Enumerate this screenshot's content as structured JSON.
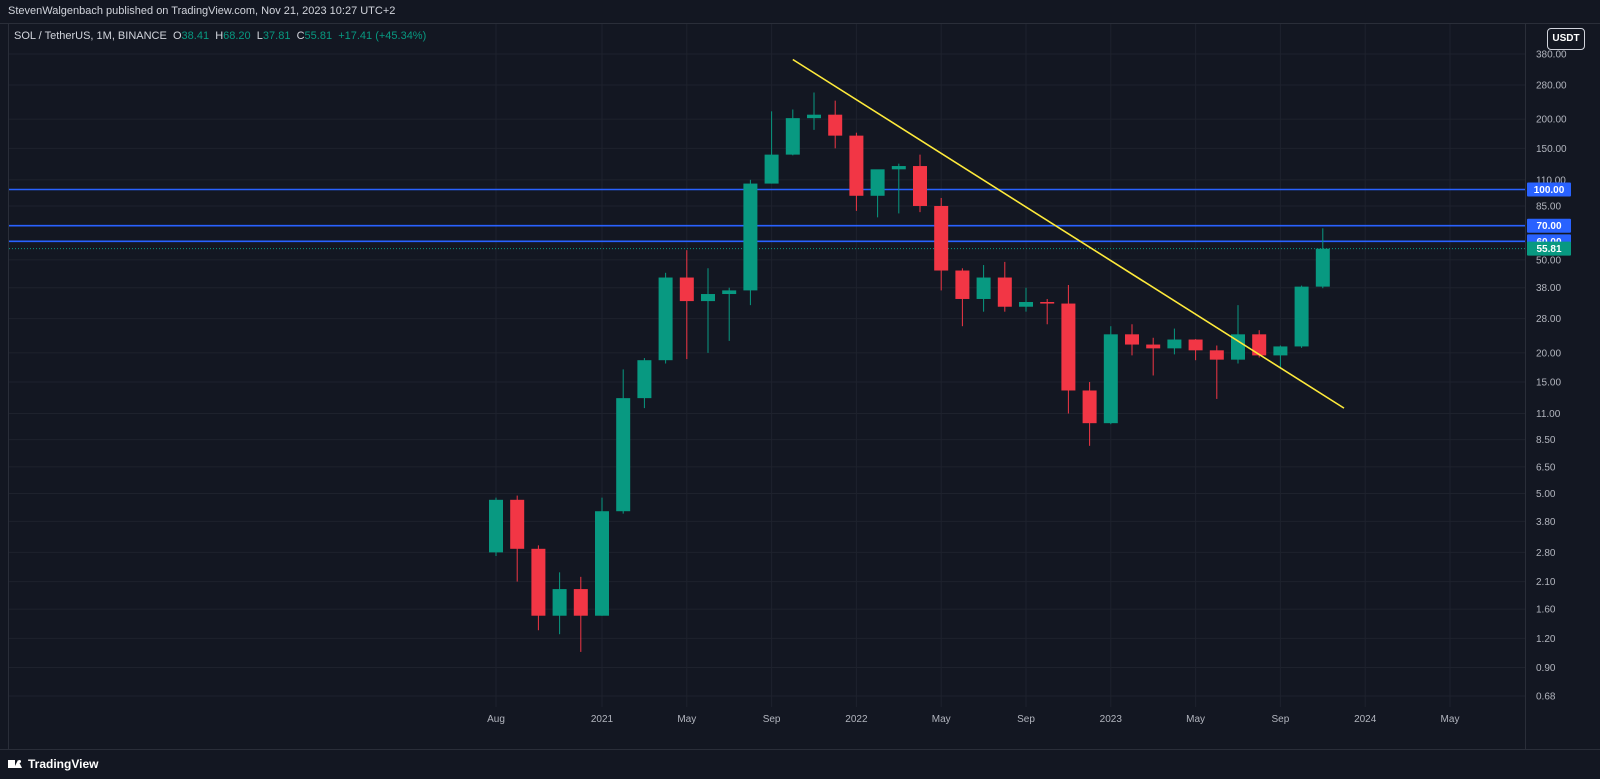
{
  "header": {
    "publisher": "StevenWalgenbach published on TradingView.com, Nov 21, 2023 10:27 UTC+2"
  },
  "legend": {
    "symbol": "SOL / TetherUS, 1M, BINANCE",
    "open_label": "O",
    "open": "38.41",
    "high_label": "H",
    "high": "68.20",
    "low_label": "L",
    "low": "37.81",
    "close_label": "C",
    "close": "55.81",
    "change": "+17.41 (+45.34%)"
  },
  "currency_button": "USDT",
  "footer": {
    "brand": "TradingView"
  },
  "colors": {
    "background": "#131722",
    "up": "#089981",
    "down": "#f23645",
    "trendline": "#ffeb3b",
    "level_line": "#2962ff",
    "grid": "#1e222d"
  },
  "chart_data": {
    "type": "candlestick",
    "scale": "log",
    "ylim": [
      0.6,
      450
    ],
    "y_ticks": [
      "0.68",
      "0.90",
      "1.20",
      "1.60",
      "2.10",
      "2.80",
      "3.80",
      "5.00",
      "6.50",
      "8.50",
      "11.00",
      "15.00",
      "20.00",
      "28.00",
      "38.00",
      "50.00",
      "85.00",
      "110.00",
      "150.00",
      "200.00",
      "280.00",
      "380.00"
    ],
    "x_ticks": [
      "Aug",
      "2021",
      "May",
      "Sep",
      "2022",
      "May",
      "Sep",
      "2023",
      "May",
      "Sep",
      "2024",
      "May"
    ],
    "candles": [
      {
        "date": "2020-08",
        "o": 2.8,
        "h": 4.8,
        "l": 2.7,
        "c": 4.7
      },
      {
        "date": "2020-09",
        "o": 4.7,
        "h": 4.9,
        "l": 2.1,
        "c": 2.9
      },
      {
        "date": "2020-10",
        "o": 2.9,
        "h": 3.0,
        "l": 1.3,
        "c": 1.5
      },
      {
        "date": "2020-11",
        "o": 1.5,
        "h": 2.3,
        "l": 1.25,
        "c": 1.95
      },
      {
        "date": "2020-12",
        "o": 1.95,
        "h": 2.2,
        "l": 1.05,
        "c": 1.5
      },
      {
        "date": "2021-01",
        "o": 1.5,
        "h": 4.8,
        "l": 1.5,
        "c": 4.2
      },
      {
        "date": "2021-02",
        "o": 4.2,
        "h": 17.0,
        "l": 4.1,
        "c": 12.8
      },
      {
        "date": "2021-03",
        "o": 12.8,
        "h": 19.0,
        "l": 11.6,
        "c": 18.6
      },
      {
        "date": "2021-04",
        "o": 18.6,
        "h": 44.0,
        "l": 18.0,
        "c": 42.0
      },
      {
        "date": "2021-05",
        "o": 42.0,
        "h": 55.0,
        "l": 18.8,
        "c": 33.3
      },
      {
        "date": "2021-06",
        "o": 33.3,
        "h": 46.0,
        "l": 20.0,
        "c": 35.7
      },
      {
        "date": "2021-07",
        "o": 35.7,
        "h": 38.0,
        "l": 22.5,
        "c": 37.0
      },
      {
        "date": "2021-08",
        "o": 37.0,
        "h": 110.0,
        "l": 32.0,
        "c": 106.0
      },
      {
        "date": "2021-09",
        "o": 106.0,
        "h": 216.0,
        "l": 106.0,
        "c": 141.0
      },
      {
        "date": "2021-10",
        "o": 141.0,
        "h": 220.0,
        "l": 140.0,
        "c": 202.0
      },
      {
        "date": "2021-11",
        "o": 202.0,
        "h": 260.0,
        "l": 180.0,
        "c": 209.0
      },
      {
        "date": "2021-12",
        "o": 209.0,
        "h": 240.0,
        "l": 150.0,
        "c": 170.0
      },
      {
        "date": "2022-01",
        "o": 170.0,
        "h": 175.0,
        "l": 81.0,
        "c": 94.0
      },
      {
        "date": "2022-02",
        "o": 94.0,
        "h": 120.0,
        "l": 76.0,
        "c": 122.0
      },
      {
        "date": "2022-03",
        "o": 122.0,
        "h": 129.0,
        "l": 79.0,
        "c": 126.0
      },
      {
        "date": "2022-04",
        "o": 126.0,
        "h": 141.0,
        "l": 80.0,
        "c": 85.0
      },
      {
        "date": "2022-05",
        "o": 85.0,
        "h": 92.0,
        "l": 37.0,
        "c": 45.0
      },
      {
        "date": "2022-06",
        "o": 45.0,
        "h": 46.0,
        "l": 26.0,
        "c": 34.0
      },
      {
        "date": "2022-07",
        "o": 34.0,
        "h": 47.5,
        "l": 30.0,
        "c": 42.0
      },
      {
        "date": "2022-08",
        "o": 42.0,
        "h": 49.0,
        "l": 30.0,
        "c": 31.5
      },
      {
        "date": "2022-09",
        "o": 31.5,
        "h": 38.0,
        "l": 30.0,
        "c": 33.0
      },
      {
        "date": "2022-10",
        "o": 33.0,
        "h": 34.0,
        "l": 26.5,
        "c": 32.5
      },
      {
        "date": "2022-11",
        "o": 32.5,
        "h": 39.0,
        "l": 11.0,
        "c": 13.8
      },
      {
        "date": "2022-12",
        "o": 13.8,
        "h": 15.0,
        "l": 8.0,
        "c": 10.0
      },
      {
        "date": "2023-01",
        "o": 10.0,
        "h": 26.0,
        "l": 9.9,
        "c": 24.0
      },
      {
        "date": "2023-02",
        "o": 24.0,
        "h": 26.5,
        "l": 19.5,
        "c": 21.7
      },
      {
        "date": "2023-03",
        "o": 21.7,
        "h": 23.2,
        "l": 16.0,
        "c": 20.9
      },
      {
        "date": "2023-04",
        "o": 20.9,
        "h": 25.4,
        "l": 19.7,
        "c": 22.8
      },
      {
        "date": "2023-05",
        "o": 22.8,
        "h": 22.9,
        "l": 18.6,
        "c": 20.5
      },
      {
        "date": "2023-06",
        "o": 20.5,
        "h": 21.5,
        "l": 12.7,
        "c": 18.7
      },
      {
        "date": "2023-07",
        "o": 18.7,
        "h": 32.0,
        "l": 18.0,
        "c": 24.0
      },
      {
        "date": "2023-08",
        "o": 24.0,
        "h": 25.0,
        "l": 19.1,
        "c": 19.5
      },
      {
        "date": "2023-09",
        "o": 19.5,
        "h": 21.5,
        "l": 17.3,
        "c": 21.3
      },
      {
        "date": "2023-10",
        "o": 21.3,
        "h": 38.8,
        "l": 21.0,
        "c": 38.4
      },
      {
        "date": "2023-11",
        "o": 38.4,
        "h": 68.2,
        "l": 37.8,
        "c": 55.8
      }
    ],
    "horizontal_levels": [
      {
        "price": 100.0,
        "label": "100.00"
      },
      {
        "price": 70.0,
        "label": "70.00"
      },
      {
        "price": 60.0,
        "label": "60.00"
      }
    ],
    "last_price": {
      "price": 55.81,
      "label": "55.81"
    },
    "trendline": {
      "from": {
        "date": "2021-10",
        "price": 360.0
      },
      "to": {
        "date": "2023-12",
        "price": 11.6
      }
    }
  }
}
